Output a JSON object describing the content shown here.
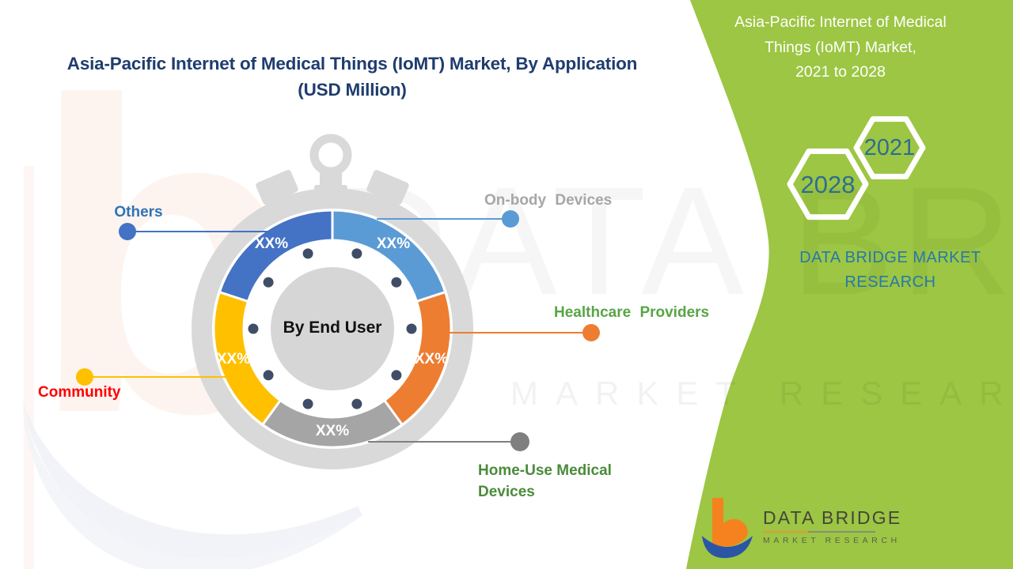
{
  "header": {
    "title_line1": "Asia-Pacific Internet of Medical Things (IoMT) Market, By Application",
    "title_line2": "(USD Million)",
    "title_color": "#1F3C6E"
  },
  "chart_data": {
    "type": "pie",
    "title": "Asia-Pacific Internet of Medical Things (IoMT) Market, By Application (USD Million)",
    "center_label": "By End User",
    "values_masked": true,
    "ring_color": "#D9D9D9",
    "tick_dot_color": "#3F4E66",
    "segments": [
      {
        "label": "On-body Devices",
        "value_label": "XX%",
        "share_pct": 20,
        "color": "#5B9BD5"
      },
      {
        "label": "Healthcare Providers",
        "value_label": "XX%",
        "share_pct": 20,
        "color": "#ED7D31"
      },
      {
        "label": "Home-Use Medical Devices",
        "value_label": "XX%",
        "share_pct": 20,
        "color": "#A5A5A5"
      },
      {
        "label": "Community",
        "value_label": "XX%",
        "share_pct": 20,
        "color": "#FFC000"
      },
      {
        "label": "Others",
        "value_label": "XX%",
        "share_pct": 20,
        "color": "#4472C4"
      }
    ]
  },
  "callouts": {
    "others": {
      "label": "Others",
      "text_color": "#2E74B5",
      "marker_color": "#4472C4"
    },
    "onbody": {
      "label": "On-body Devices",
      "text_color": "#A6A6A6",
      "marker_color": "#5B9BD5"
    },
    "healthcare": {
      "label": "Healthcare Providers",
      "text_color": "#58A546",
      "marker_color": "#ED7D31"
    },
    "homeuse": {
      "line1": "Home-Use Medical",
      "line2": "Devices",
      "text_color": "#4A8B3A",
      "marker_color": "#7F7F7F"
    },
    "community": {
      "label": "Community",
      "text_color": "#FF0000",
      "marker_color": "#FFC000"
    }
  },
  "side_panel": {
    "bg_color": "#9CC643",
    "title_line1": "Asia-Pacific Internet of Medical",
    "title_line2": "Things (IoMT) Market,",
    "title_line3": "2021 to 2028",
    "hex_start_year": "2028",
    "hex_end_year": "2021",
    "hex_text_color": "#2D6E91",
    "brand_line1": "DATA BRIDGE MARKET",
    "brand_line2": "RESEARCH",
    "brand_color": "#2778A9"
  },
  "logo": {
    "name": "DATA BRIDGE",
    "tagline": "MARKET RESEARCH"
  },
  "watermark": {
    "large_text": "DATA BRIDGE",
    "small_text": "MARKET RESEARCH"
  }
}
